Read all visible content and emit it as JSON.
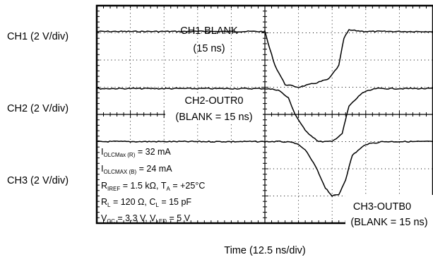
{
  "chart_data": {
    "type": "line",
    "title": "",
    "xlabel": "Time (12.5 ns/div)",
    "ylabel": "",
    "channels": [
      {
        "id": "ch1",
        "label": "CH1 (2 V/div)",
        "annotation": [
          "CH1-BLANK",
          "(15 ns)"
        ]
      },
      {
        "id": "ch2",
        "label": "CH2 (2 V/div)",
        "annotation": [
          "CH2-OUTR0",
          "(BLANK = 15 ns)"
        ]
      },
      {
        "id": "ch3",
        "label": "CH3 (2 V/div)",
        "annotation": [
          "CH3-OUTB0",
          "(BLANK = 15 ns)"
        ]
      }
    ],
    "x_divisions": 10,
    "y_divisions": 8,
    "grid": true,
    "x_unit": "div",
    "series": [
      {
        "name": "CH1-BLANK",
        "x": [
          0,
          1,
          2,
          3,
          4,
          5.0,
          5.1,
          5.3,
          5.6,
          6.0,
          6.5,
          6.9,
          7.2,
          7.35,
          7.5,
          8,
          9,
          10
        ],
        "y": [
          7.05,
          7.05,
          7.05,
          7.05,
          7.05,
          7.05,
          6.6,
          5.8,
          5.1,
          5.0,
          5.15,
          5.3,
          5.8,
          6.8,
          7.1,
          7.05,
          7.05,
          7.05
        ]
      },
      {
        "name": "CH2-OUTR0",
        "x": [
          0,
          1,
          2,
          3,
          4,
          5.0,
          5.4,
          5.7,
          5.9,
          6.2,
          6.6,
          7.0,
          7.3,
          7.5,
          7.9,
          8.3,
          9,
          10
        ],
        "y": [
          4.95,
          4.95,
          4.95,
          4.95,
          4.95,
          4.95,
          4.9,
          4.6,
          4.0,
          3.4,
          3.0,
          3.0,
          3.3,
          4.3,
          4.8,
          4.95,
          4.95,
          4.95
        ]
      },
      {
        "name": "CH3-OUTB0",
        "x": [
          0,
          1,
          2,
          3,
          4,
          5.0,
          5.5,
          5.9,
          6.2,
          6.5,
          6.8,
          7.0,
          7.2,
          7.4,
          7.6,
          8.0,
          8.5,
          9,
          10
        ],
        "y": [
          3.0,
          3.0,
          3.0,
          3.0,
          3.0,
          3.0,
          3.0,
          2.95,
          2.7,
          2.1,
          1.3,
          1.0,
          1.05,
          1.6,
          2.5,
          2.9,
          3.0,
          3.0,
          3.0
        ]
      }
    ],
    "conditions": [
      {
        "main": "I",
        "sub": "OLCMax (R)",
        "rest": " = 32 mA"
      },
      {
        "main": "I",
        "sub": "OLCMAX (B)",
        "rest": " = 24 mA"
      },
      {
        "main": "R",
        "sub": "IREF",
        "rest": " = 1.5 kΩ, T",
        "sub2": "A",
        "rest2": " = +25°C"
      },
      {
        "main": "R",
        "sub": "L",
        "rest": " = 120 Ω, C",
        "sub2": "L",
        "rest2": " = 15 pF"
      },
      {
        "main": "V",
        "sub": "CC",
        "rest": " = 3.3 V, V",
        "sub2": "LED",
        "rest2": " = 5 V"
      }
    ]
  }
}
